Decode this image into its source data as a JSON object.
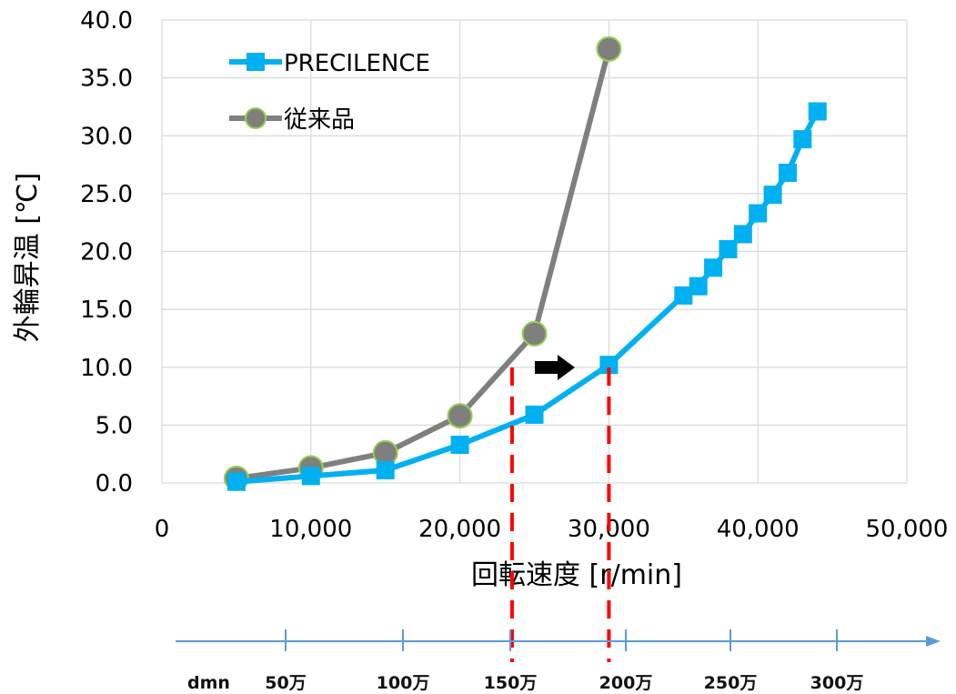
{
  "chart_data": {
    "type": "line",
    "xlabel": "回転速度 [r/min]",
    "ylabel": "外輪昇温 [℃]",
    "xlim": [
      0,
      50000
    ],
    "ylim": [
      0,
      40
    ],
    "x_ticks": [
      "0",
      "10,000",
      "20,000",
      "30,000",
      "40,000",
      "50,000"
    ],
    "y_ticks": [
      "0.0",
      "5.0",
      "10.0",
      "15.0",
      "20.0",
      "25.0",
      "30.0",
      "35.0",
      "40.0"
    ],
    "grid": true,
    "legend_position": "top-left",
    "series": [
      {
        "name": "PRECILENCE",
        "color": "#00b0f0",
        "marker": "square",
        "points": [
          [
            5000,
            0.1
          ],
          [
            10000,
            0.6
          ],
          [
            15000,
            1.1
          ],
          [
            20000,
            3.3
          ],
          [
            25000,
            5.9
          ],
          [
            30000,
            10.2
          ],
          [
            35000,
            16.2
          ],
          [
            36000,
            17.0
          ],
          [
            37000,
            18.6
          ],
          [
            38000,
            20.2
          ],
          [
            39000,
            21.5
          ],
          [
            40000,
            23.3
          ],
          [
            41000,
            24.9
          ],
          [
            42000,
            26.8
          ],
          [
            43000,
            29.7
          ],
          [
            44000,
            32.1
          ]
        ]
      },
      {
        "name": "従来品",
        "color": "#7f7f7f",
        "marker": "circle",
        "marker_edge": "#92d050",
        "points": [
          [
            5000,
            0.4
          ],
          [
            10000,
            1.3
          ],
          [
            15000,
            2.6
          ],
          [
            20000,
            5.8
          ],
          [
            25000,
            12.9
          ],
          [
            30000,
            37.5
          ]
        ]
      }
    ],
    "annotations": {
      "arrow_color": "#000000",
      "limit_lines_color": "#ff0000",
      "limit_lines_x": [
        23500,
        30000
      ]
    },
    "dmn_axis": {
      "label": "dmn",
      "ticks": [
        "50万",
        "100万",
        "150万",
        "200万",
        "250万",
        "300万"
      ],
      "color": "#5b9bd5"
    }
  }
}
